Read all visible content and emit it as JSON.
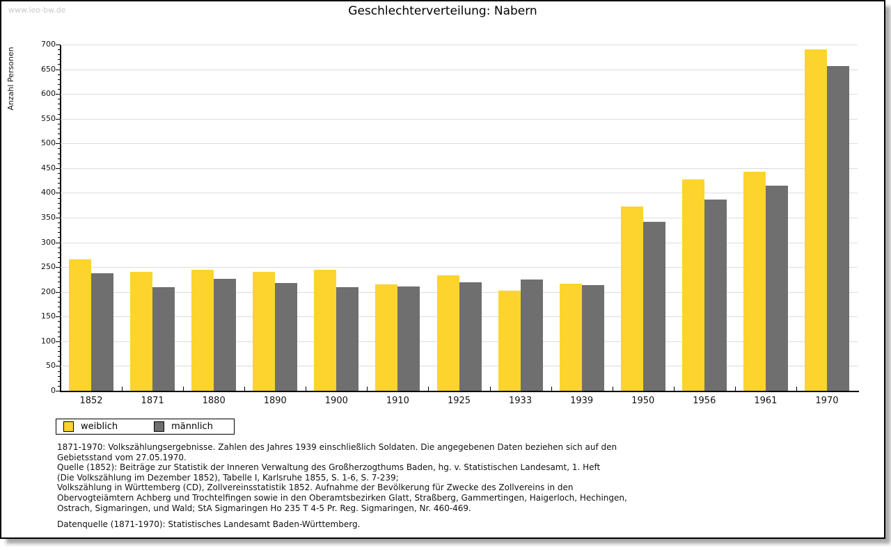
{
  "watermark": "www.leo-bw.de",
  "title": "Geschlechterverteilung: Nabern",
  "chart_data": {
    "type": "bar",
    "title": "Geschlechterverteilung: Nabern",
    "xlabel": "",
    "ylabel": "Anzahl Personen",
    "ylim": [
      0,
      700
    ],
    "ytick_step": 50,
    "yticks": [
      0,
      50,
      100,
      150,
      200,
      250,
      300,
      350,
      400,
      450,
      500,
      550,
      600,
      650,
      700
    ],
    "minor_tick_step": 10,
    "grid": true,
    "legend_position": "bottom-left",
    "categories": [
      "1852",
      "1871",
      "1880",
      "1890",
      "1900",
      "1910",
      "1925",
      "1933",
      "1939",
      "1950",
      "1956",
      "1961",
      "1970"
    ],
    "series": [
      {
        "name": "weiblich",
        "color": "#fcd42d",
        "values": [
          265,
          240,
          245,
          241,
          245,
          215,
          234,
          202,
          216,
          372,
          427,
          443,
          690
        ]
      },
      {
        "name": "männlich",
        "color": "#6f6f6f",
        "values": [
          238,
          210,
          227,
          218,
          210,
          211,
          220,
          225,
          214,
          341,
          386,
          414,
          656
        ]
      }
    ]
  },
  "legend": {
    "items": [
      {
        "label": "weiblich",
        "color": "#fcd42d"
      },
      {
        "label": "männlich",
        "color": "#6f6f6f"
      }
    ]
  },
  "footnotes": {
    "lines": [
      "1871-1970: Volkszählungsergebnisse. Zahlen des Jahres 1939 einschließlich Soldaten. Die angegebenen Daten beziehen sich auf den",
      "Gebietsstand vom 27.05.1970.",
      "Quelle (1852): Beiträge zur Statistik der Inneren Verwaltung des Großherzogthums Baden, hg. v. Statistischen Landesamt, 1. Heft",
      "(Die Volkszählung im Dezember 1852), Tabelle I, Karlsruhe 1855, S. 1-6, S. 7-239;",
      "Volkszählung in Württemberg (CD), Zollvereinsstatistik 1852. Aufnahme der Bevölkerung für Zwecke des Zollvereins in den",
      "Obervogteiämtern Achberg und Trochtelfingen sowie in den Oberamtsbezirken Glatt, Straßberg, Gammertingen, Haigerloch, Hechingen,",
      "Ostrach, Sigmaringen, und Wald; StA Sigmaringen Ho 235 T 4-5 Pr. Reg. Sigmaringen, Nr. 460-469."
    ],
    "source": "Datenquelle (1871-1970): Statistisches Landesamt Baden-Württemberg."
  },
  "colors": {
    "bar_female": "#fcd42d",
    "bar_male": "#6f6f6f",
    "gridline": "#dcdcdc",
    "axis": "#000000",
    "watermark": "#c9c9c9",
    "frame_border": "#000000"
  }
}
